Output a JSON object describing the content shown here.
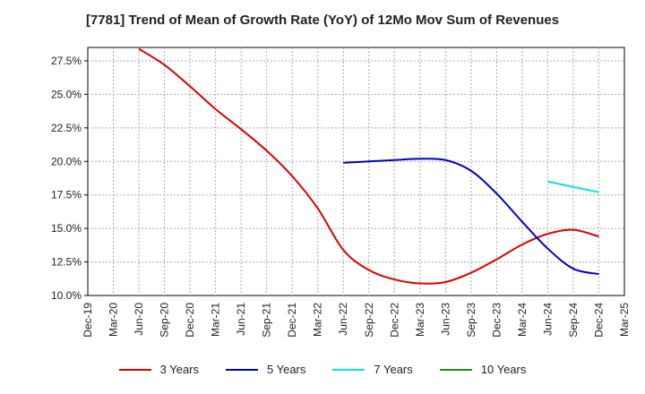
{
  "chart_data": {
    "type": "line",
    "title": "[7781]  Trend of Mean of Growth Rate (YoY) of 12Mo Mov Sum of Revenues",
    "xlabel": "",
    "ylabel": "",
    "ylim": [
      10.0,
      28.5
    ],
    "yticks": [
      10.0,
      12.5,
      15.0,
      17.5,
      20.0,
      22.5,
      25.0,
      27.5
    ],
    "ytick_labels": [
      "10.0%",
      "12.5%",
      "15.0%",
      "17.5%",
      "20.0%",
      "22.5%",
      "25.0%",
      "27.5%"
    ],
    "categories": [
      "Dec-19",
      "Mar-20",
      "Jun-20",
      "Sep-20",
      "Dec-20",
      "Mar-21",
      "Jun-21",
      "Sep-21",
      "Dec-21",
      "Mar-22",
      "Jun-22",
      "Sep-22",
      "Dec-22",
      "Mar-23",
      "Jun-23",
      "Sep-23",
      "Dec-23",
      "Mar-24",
      "Jun-24",
      "Sep-24",
      "Dec-24",
      "Mar-25"
    ],
    "grid": true,
    "legend_position": "bottom",
    "series": [
      {
        "name": "3 Years",
        "color": "#dd0000",
        "values": [
          null,
          null,
          28.4,
          27.2,
          25.6,
          23.9,
          22.4,
          20.8,
          18.9,
          16.5,
          13.4,
          11.9,
          11.2,
          10.9,
          11.0,
          11.7,
          12.7,
          13.8,
          14.6,
          14.9,
          14.4,
          null
        ]
      },
      {
        "name": "5 Years",
        "color": "#0000cc",
        "values": [
          null,
          null,
          null,
          null,
          null,
          null,
          null,
          null,
          null,
          null,
          19.9,
          20.0,
          20.1,
          20.2,
          20.1,
          19.3,
          17.6,
          15.5,
          13.5,
          12.0,
          11.6,
          null
        ]
      },
      {
        "name": "7 Years",
        "color": "#00e5ee",
        "values": [
          null,
          null,
          null,
          null,
          null,
          null,
          null,
          null,
          null,
          null,
          null,
          null,
          null,
          null,
          null,
          null,
          null,
          null,
          18.5,
          18.1,
          17.7,
          null
        ]
      },
      {
        "name": "10 Years",
        "color": "#228b22",
        "values": [
          null,
          null,
          null,
          null,
          null,
          null,
          null,
          null,
          null,
          null,
          null,
          null,
          null,
          null,
          null,
          null,
          null,
          null,
          null,
          null,
          null,
          null
        ]
      }
    ]
  }
}
